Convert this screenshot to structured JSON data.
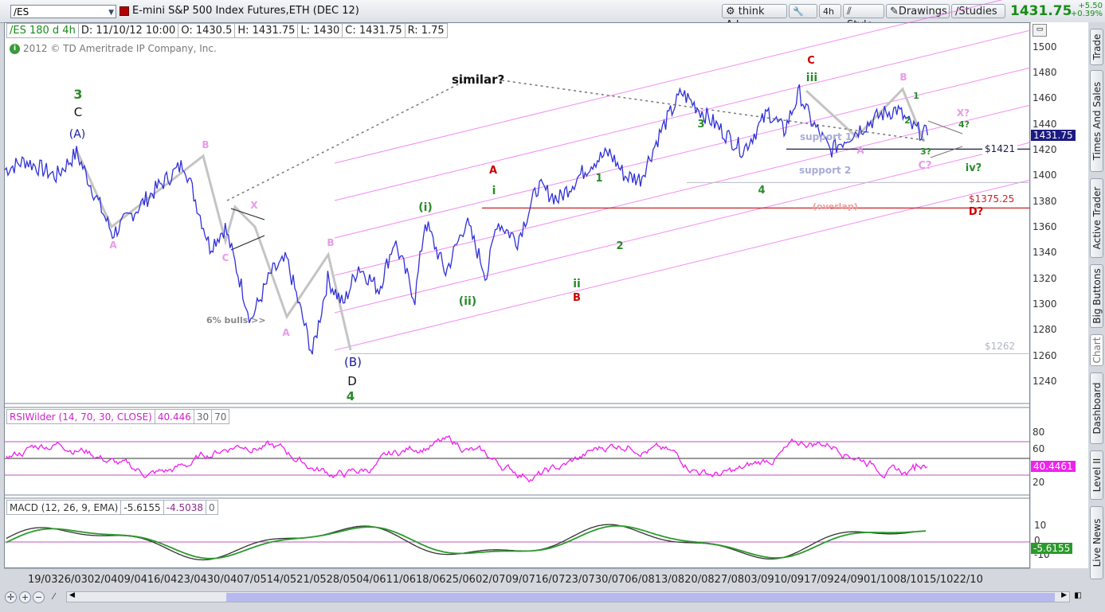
{
  "toolbar": {
    "symbol": "/ES",
    "description": "E-mini S&P 500 Index Futures,ETH (DEC 12)",
    "think_label": "think A.I.",
    "aggregation": "4h",
    "style_label": "Style",
    "drawings_label": "Drawings",
    "studies_label": "Studies",
    "last_price": "1431.75",
    "change": "+5.50",
    "change_pct": "+0.39%"
  },
  "info_bar": {
    "symbol_period": "/ES 180 d 4h",
    "date": "D: 11/10/12 10:00",
    "open": "O: 1430.5",
    "high": "H: 1431.75",
    "low": "L: 1430",
    "close": "C: 1431.75",
    "range": "R: 1.75"
  },
  "copyright": "2012 © TD Ameritrade IP Company, Inc.",
  "colors": {
    "price_line": "#3030d8",
    "channel": "#ee66ee",
    "rsi_line": "#ee22ee",
    "macd_line": "#333333",
    "macd_signal": "#2a9a2a",
    "wave_green": "#2a8a2a",
    "wave_pink": "#e89ae8",
    "wave_red": "#cc0000",
    "wave_blue": "#1a1aa0"
  },
  "right_tabs": [
    "Trade",
    "Times And Sales",
    "Active Trader",
    "Big Buttons",
    "Chart",
    "Dashboard",
    "Level II",
    "Live News"
  ],
  "chart_data": [
    {
      "type": "line",
      "title": "/ES 180 d 4h",
      "ylim": [
        1225,
        1510
      ],
      "yticks": [
        1240,
        1260,
        1280,
        1300,
        1320,
        1340,
        1360,
        1380,
        1400,
        1420,
        1440,
        1460,
        1480,
        1500
      ],
      "last_value": "1431.75",
      "x_labels": [
        "19/03",
        "26/03",
        "02/04",
        "09/04",
        "16/04",
        "23/04",
        "30/04",
        "07/05",
        "14/05",
        "21/05",
        "28/05",
        "04/06",
        "11/06",
        "18/06",
        "25/06",
        "02/07",
        "09/07",
        "16/07",
        "23/07",
        "30/07",
        "06/08",
        "13/08",
        "20/08",
        "27/08",
        "03/09",
        "10/09",
        "17/09",
        "24/09",
        "01/10",
        "08/10",
        "15/10",
        "22/10"
      ],
      "series": [
        {
          "x": [
            0,
            0.02,
            0.05,
            0.07,
            0.105,
            0.15,
            0.175,
            0.2,
            0.215,
            0.24,
            0.26,
            0.275,
            0.3,
            0.315,
            0.33,
            0.345,
            0.365,
            0.38,
            0.4,
            0.41,
            0.43,
            0.45,
            0.47,
            0.48,
            0.5,
            0.52,
            0.54,
            0.56,
            0.575,
            0.59,
            0.605,
            0.62,
            0.64,
            0.66,
            0.7,
            0.72,
            0.745,
            0.76,
            0.775,
            0.785,
            0.805,
            0.825,
            0.84,
            0.855,
            0.87,
            0.885,
            0.9
          ],
          "values": [
            1405,
            1412,
            1400,
            1418,
            1355,
            1392,
            1410,
            1345,
            1360,
            1288,
            1325,
            1335,
            1262,
            1320,
            1300,
            1330,
            1312,
            1350,
            1305,
            1365,
            1325,
            1365,
            1322,
            1365,
            1350,
            1392,
            1382,
            1400,
            1412,
            1418,
            1400,
            1398,
            1435,
            1465,
            1435,
            1420,
            1450,
            1435,
            1465,
            1445,
            1420,
            1432,
            1440,
            1448,
            1452,
            1438,
            1431.75
          ]
        }
      ],
      "hlines": [
        {
          "value": 1421,
          "label": "$1421",
          "color": "#1a1a4a"
        },
        {
          "value": 1375.25,
          "label": "$1375.25",
          "color": "#cc2222"
        },
        {
          "value": 1262,
          "label": "$1262",
          "color": "#aab"
        },
        {
          "value": 1395,
          "label": "support 2",
          "color": "#aab"
        }
      ],
      "annotations": {
        "similar": "similar?",
        "bulls": "6% bulls >>",
        "overlap": "(overlap)",
        "support1": "support 1",
        "support2": "support 2",
        "waves": [
          {
            "text": "3",
            "color": "green",
            "pos": "upper-left"
          },
          {
            "text": "C",
            "color": "black"
          },
          {
            "text": "(A)",
            "color": "blue"
          },
          {
            "text": "A",
            "color": "pink"
          },
          {
            "text": "B",
            "color": "pink"
          },
          {
            "text": "C",
            "color": "pink"
          },
          {
            "text": "X",
            "color": "pink"
          },
          {
            "text": "A",
            "color": "pink"
          },
          {
            "text": "B",
            "color": "pink"
          },
          {
            "text": "(B)",
            "color": "blue"
          },
          {
            "text": "D",
            "color": "black"
          },
          {
            "text": "4",
            "color": "green"
          },
          {
            "text": "(i)",
            "color": "green"
          },
          {
            "text": "(ii)",
            "color": "green"
          },
          {
            "text": "A",
            "color": "red"
          },
          {
            "text": "i",
            "color": "green"
          },
          {
            "text": "ii",
            "color": "green"
          },
          {
            "text": "B",
            "color": "red"
          },
          {
            "text": "1",
            "color": "green"
          },
          {
            "text": "2",
            "color": "green"
          },
          {
            "text": "3",
            "color": "green"
          },
          {
            "text": "4",
            "color": "green"
          },
          {
            "text": "C",
            "color": "red"
          },
          {
            "text": "iii",
            "color": "green"
          },
          {
            "text": "A",
            "color": "pink"
          },
          {
            "text": "B",
            "color": "pink"
          },
          {
            "text": "1",
            "color": "green"
          },
          {
            "text": "2",
            "color": "green"
          },
          {
            "text": "3?",
            "color": "green"
          },
          {
            "text": "4?",
            "color": "green"
          },
          {
            "text": "X?",
            "color": "pink"
          },
          {
            "text": "C?",
            "color": "pink"
          },
          {
            "text": "iv?",
            "color": "green"
          },
          {
            "text": "D?",
            "color": "red"
          }
        ]
      }
    },
    {
      "type": "line",
      "title": "RSIWilder (14, 70, 30, CLOSE)",
      "header_values": [
        "40.446",
        "30",
        "70"
      ],
      "ylim": [
        0,
        100
      ],
      "yticks": [
        20,
        60,
        80
      ],
      "levels": [
        30,
        50,
        70
      ],
      "last_value": "40.4461"
    },
    {
      "type": "line",
      "title": "MACD (12, 26, 9, EMA)",
      "header_values": [
        "-5.6155",
        "-4.5038",
        "0"
      ],
      "yticks": [
        -10,
        0,
        10
      ],
      "last_value": "-5.6155"
    }
  ]
}
